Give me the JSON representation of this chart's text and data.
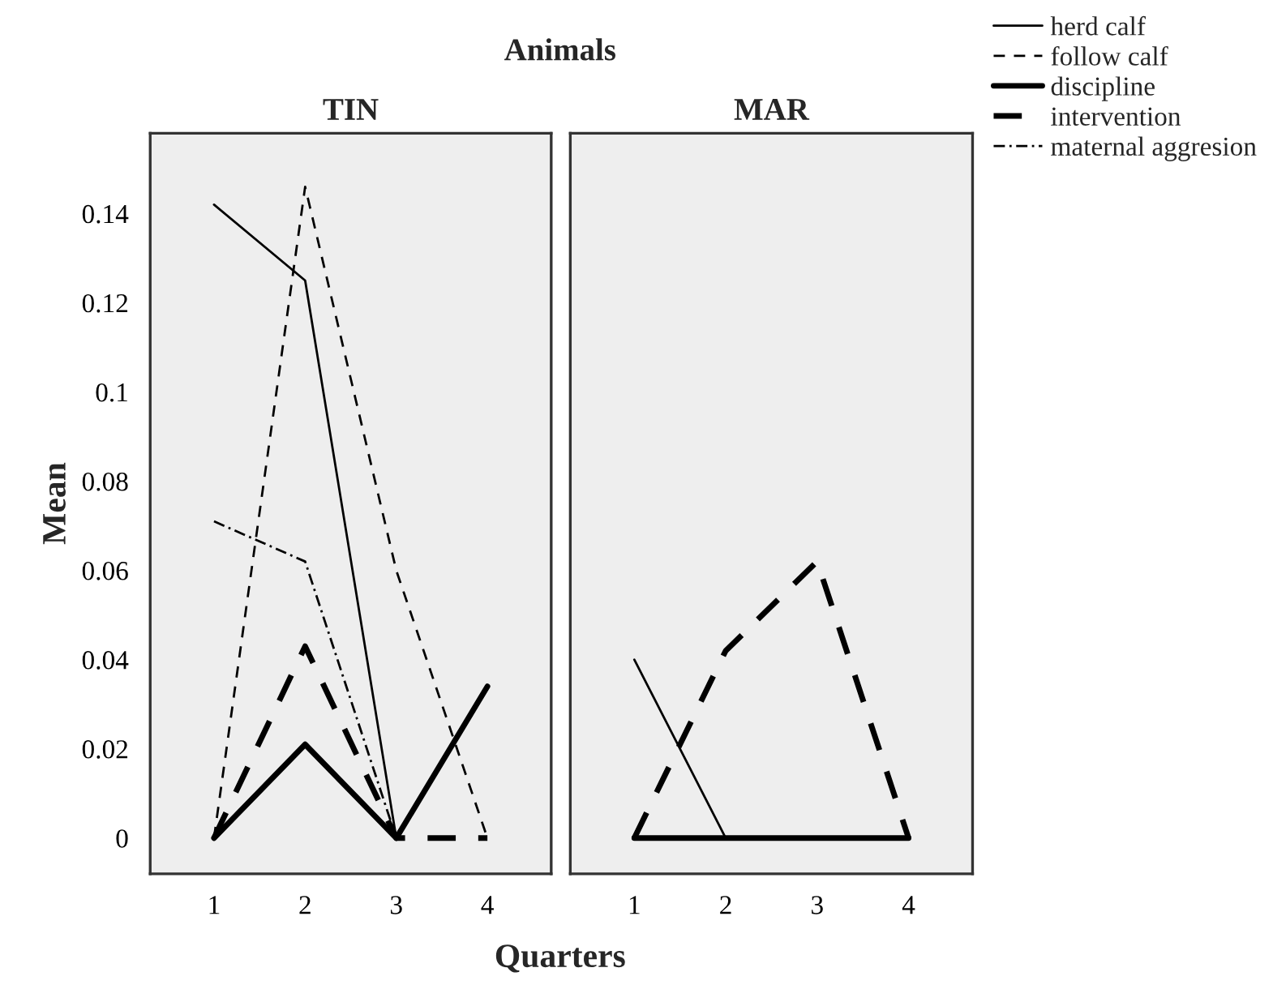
{
  "chart_data": [
    {
      "type": "line",
      "title": "TIN",
      "xlabel": "Quarters",
      "ylabel": "Mean",
      "annotations": [
        "Animals"
      ],
      "x": [
        1,
        2,
        3,
        4
      ],
      "xlim": [
        0.3,
        4.7
      ],
      "xticks": [
        1,
        2,
        3,
        4
      ],
      "ylim": [
        -0.008,
        0.158
      ],
      "yticks": [
        0,
        0.02,
        0.04,
        0.06,
        0.08,
        0.1,
        0.12,
        0.14
      ],
      "grid": false,
      "legend": "top right",
      "series": [
        {
          "name": "herd calf",
          "color": "#000000",
          "line_style": "solid",
          "values": [
            0.142,
            0.125,
            0,
            null
          ]
        },
        {
          "name": "follow calf",
          "color": "#000000",
          "line_style": "dashed",
          "values": [
            0,
            0.146,
            0.06,
            0
          ]
        },
        {
          "name": "discipline",
          "color": "#000000",
          "line_style": "solid",
          "values": [
            0,
            0.021,
            0,
            0.034
          ]
        },
        {
          "name": "intervention",
          "color": "#000000",
          "line_style": "dashed",
          "values": [
            0,
            0.043,
            0,
            0
          ]
        },
        {
          "name": "maternal aggresion",
          "color": "#000000",
          "line_style": "dashdot",
          "values": [
            0.071,
            0.062,
            0,
            null
          ]
        }
      ]
    },
    {
      "type": "line",
      "title": "MAR",
      "x": [
        1,
        2,
        3,
        4
      ],
      "xlim": [
        0.3,
        4.7
      ],
      "xticks": [
        1,
        2,
        3,
        4
      ],
      "ylim": [
        -0.008,
        0.158
      ],
      "yticks": [
        0,
        0.02,
        0.04,
        0.06,
        0.08,
        0.1,
        0.12,
        0.14
      ],
      "grid": false,
      "tick_labels": "x",
      "series": [
        {
          "color": "#000000",
          "line_style": "solid",
          "values": [
            0.04,
            0,
            null,
            null
          ]
        },
        {
          "color": "#000000",
          "line_style": "dashed",
          "values": [
            null,
            null,
            null,
            null
          ]
        },
        {
          "color": "#000000",
          "line_style": "solid",
          "values": [
            0,
            0,
            0,
            0
          ]
        },
        {
          "color": "#000000",
          "line_style": "dashed",
          "values": [
            0,
            0.042,
            0.062,
            0
          ]
        },
        {
          "color": "#000000",
          "line_style": "dashdot",
          "values": [
            null,
            null,
            null,
            null
          ]
        }
      ]
    }
  ]
}
